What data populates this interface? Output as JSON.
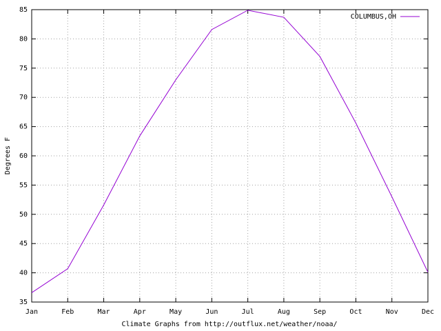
{
  "chart_data": {
    "type": "line",
    "xlabel": "Climate Graphs from http://outflux.net/weather/noaa/",
    "ylabel": "Degrees F",
    "categories": [
      "Jan",
      "Feb",
      "Mar",
      "Apr",
      "May",
      "Jun",
      "Jul",
      "Aug",
      "Sep",
      "Oct",
      "Nov",
      "Dec"
    ],
    "series": [
      {
        "name": "COLUMBUS,OH",
        "color": "#9400d3",
        "values": [
          36.6,
          40.7,
          51.6,
          63.4,
          73.0,
          81.6,
          84.9,
          83.7,
          77.0,
          65.6,
          53.0,
          40.1
        ]
      }
    ],
    "ylim": [
      35,
      85
    ],
    "yticks": [
      35,
      40,
      45,
      50,
      55,
      60,
      65,
      70,
      75,
      80,
      85
    ],
    "grid": true,
    "legend": "top-right"
  }
}
